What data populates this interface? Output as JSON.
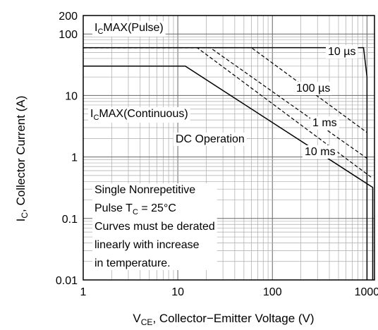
{
  "chart_data": {
    "type": "line",
    "x_scale": "log",
    "y_scale": "log",
    "xlim": [
      1,
      1200
    ],
    "ylim": [
      0.01,
      200
    ],
    "grid": true,
    "xlabel": {
      "main": "V",
      "sub": "CE",
      "rest": ", Collector−Emitter Voltage (V)"
    },
    "ylabel": {
      "main": "I",
      "sub": "C",
      "rest": ", Collector Current (A)"
    },
    "x_ticks": [
      {
        "value": 1,
        "label": "1"
      },
      {
        "value": 10,
        "label": "10"
      },
      {
        "value": 100,
        "label": "100"
      },
      {
        "value": 1000,
        "label": "1000"
      }
    ],
    "y_ticks": [
      {
        "value": 0.01,
        "label": "0.01"
      },
      {
        "value": 0.1,
        "label": "0.1"
      },
      {
        "value": 1,
        "label": "1"
      },
      {
        "value": 10,
        "label": "10"
      },
      {
        "value": 100,
        "label": "100"
      },
      {
        "value": 200,
        "label": "200"
      }
    ],
    "series": [
      {
        "label": "10 µs",
        "style": "solid",
        "points": [
          [
            1,
            60
          ],
          [
            920,
            60
          ],
          [
            1000,
            20
          ],
          [
            1000,
            0.01
          ]
        ]
      },
      {
        "label": "100 µs",
        "style": "dashed",
        "points": [
          [
            1,
            60
          ],
          [
            60,
            60
          ],
          [
            1000,
            2.5
          ]
        ]
      },
      {
        "label": "1 ms",
        "style": "dashed",
        "points": [
          [
            1,
            60
          ],
          [
            22,
            60
          ],
          [
            1000,
            0.95
          ]
        ]
      },
      {
        "label": "10 ms",
        "style": "dashed",
        "points": [
          [
            1,
            60
          ],
          [
            16,
            60
          ],
          [
            1150,
            0.45
          ]
        ]
      },
      {
        "label": "DC Operation",
        "style": "solid",
        "points": [
          [
            1,
            30
          ],
          [
            12,
            30
          ],
          [
            1150,
            0.32
          ],
          [
            1150,
            0.01
          ]
        ]
      }
    ],
    "annotations": {
      "pulse": {
        "main": "I",
        "sub": "C",
        "rest": "MAX(Pulse)"
      },
      "continuous": {
        "main": "I",
        "sub": "C",
        "rest": "MAX(Continuous)"
      },
      "dc": "DC Operation",
      "t10us": "10 µs",
      "t100us": "100 µs",
      "t1ms": "1 ms",
      "t10ms": "10 ms"
    },
    "note_lines": [
      {
        "text": "Single Nonrepetitive"
      },
      {
        "text": "Pulse T",
        "sub": "C",
        "rest": " = 25°C"
      },
      {
        "text": "Curves must be derated"
      },
      {
        "text": "linearly with increase"
      },
      {
        "text": "in temperature."
      }
    ]
  }
}
